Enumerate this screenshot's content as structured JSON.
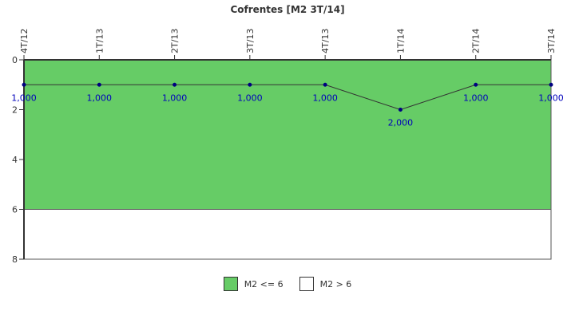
{
  "chart_data": {
    "type": "line",
    "title": "Cofrentes [M2 3T/14]",
    "x_position": "top",
    "categories": [
      "4T/12",
      "1T/13",
      "2T/13",
      "3T/13",
      "4T/13",
      "1T/14",
      "2T/14",
      "3T/14"
    ],
    "series": [
      {
        "values": [
          1,
          1,
          1,
          1,
          1,
          2,
          1,
          1
        ],
        "labels": [
          "1,000",
          "1,000",
          "1,000",
          "1,000",
          "1,000",
          "2,000",
          "1,000",
          "1,000"
        ],
        "color": "#000080"
      }
    ],
    "y_ticks": [
      "0",
      "2",
      "4",
      "6",
      "8"
    ],
    "ylim": [
      0,
      8
    ],
    "y_inverted": true,
    "bands": [
      {
        "name": "M2 <= 6",
        "from": 0,
        "to": 6,
        "color": "#66cc66"
      },
      {
        "name": "M2 > 6",
        "from": 6,
        "to": 8,
        "color": "#ffffff"
      }
    ],
    "legend_position": "bottom-center"
  }
}
